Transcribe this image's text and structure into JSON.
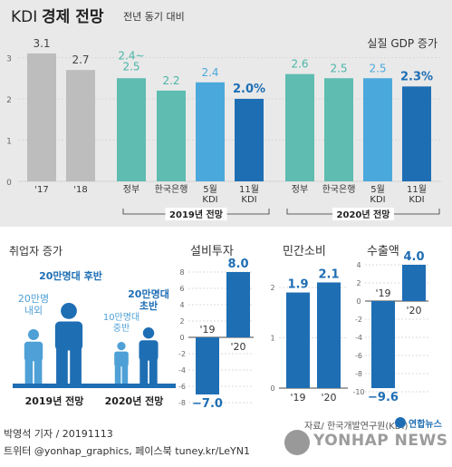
{
  "header": {
    "title_prefix": "KDI",
    "title_main": "경제 전망",
    "subtitle": "전년 동기 대비",
    "gdp_label": "실질 GDP 증가"
  },
  "chart_data": [
    {
      "type": "bar",
      "title": "실질 GDP 증가",
      "ylim": [
        0,
        3
      ],
      "yticks": [
        0,
        1,
        2,
        3
      ],
      "bars": [
        {
          "label": "'17",
          "value": 3.1,
          "value_text": "3.1",
          "group": "past"
        },
        {
          "label": "'18",
          "value": 2.7,
          "value_text": "2.7",
          "group": "past"
        },
        {
          "label": "정부",
          "value": 2.5,
          "value_text": "2.4~\n2.5",
          "group": "2019"
        },
        {
          "label": "한국은행",
          "value": 2.2,
          "value_text": "2.2",
          "group": "2019"
        },
        {
          "label": "5월\nKDI",
          "value": 2.4,
          "value_text": "2.4",
          "group": "2019"
        },
        {
          "label": "11월\nKDI",
          "value": 2.0,
          "value_text": "2.0%",
          "group": "2019",
          "highlight": true
        },
        {
          "label": "정부",
          "value": 2.6,
          "value_text": "2.6",
          "group": "2020"
        },
        {
          "label": "한국은행",
          "value": 2.5,
          "value_text": "2.5",
          "group": "2020"
        },
        {
          "label": "5월\nKDI",
          "value": 2.5,
          "value_text": "2.5",
          "group": "2020"
        },
        {
          "label": "11월\nKDI",
          "value": 2.3,
          "value_text": "2.3%",
          "group": "2020",
          "highlight": true
        }
      ],
      "group_labels": {
        "2019": "2019년 전망",
        "2020": "2020년 전망"
      }
    },
    {
      "type": "icon-comparison",
      "title": "취업자 증가",
      "groups": [
        {
          "label": "2019년 전망",
          "small_text": "20만명\n내외",
          "large_text": "20만명대 후반"
        },
        {
          "label": "2020년 전망",
          "small_text": "10만명대\n중반",
          "large_text": "20만명대\n초반"
        }
      ]
    },
    {
      "type": "bar",
      "title": "설비투자",
      "ylim": [
        -8,
        8
      ],
      "yticks": [
        8,
        6,
        4,
        2,
        0,
        -2,
        -4,
        -6,
        -8
      ],
      "categories": [
        "'19",
        "'20"
      ],
      "values": [
        -7.0,
        8.0
      ],
      "value_texts": [
        "−7.0",
        "8.0"
      ]
    },
    {
      "type": "bar",
      "title": "민간소비",
      "ylim": [
        0,
        2
      ],
      "yticks": [
        2,
        1,
        0
      ],
      "categories": [
        "'19",
        "'20"
      ],
      "values": [
        1.9,
        2.1
      ],
      "value_texts": [
        "1.9",
        "2.1"
      ]
    },
    {
      "type": "bar",
      "title": "수출액",
      "ylim": [
        -10,
        4
      ],
      "yticks": [
        4,
        2,
        0,
        -2,
        -4,
        -6,
        -8,
        -10
      ],
      "categories": [
        "'19",
        "'20"
      ],
      "values": [
        -9.6,
        4.0
      ],
      "value_texts": [
        "−9.6",
        "4.0"
      ]
    }
  ],
  "colors": {
    "gray": "#bdbdbd",
    "teal": "#5ebcb0",
    "sky": "#4ba8dc",
    "navy": "#1e6eb4",
    "accent_text": "#1e6eb4",
    "teal_text": "#4bb5a8",
    "icon_light": "#4ea0d6",
    "icon_dark": "#1e6eb4",
    "panel_bg": "#e9e9e9"
  },
  "footer": {
    "reporter": "박영석 기자 / 20191113",
    "social": "트위터 @yonhap_graphics, 페이스북 tuney.kr/LeYN1",
    "source": "자료/ 한국개발연구원(KDI)",
    "logo_small": "연합뉴스",
    "logo_large": "YONHAP NEWS"
  }
}
